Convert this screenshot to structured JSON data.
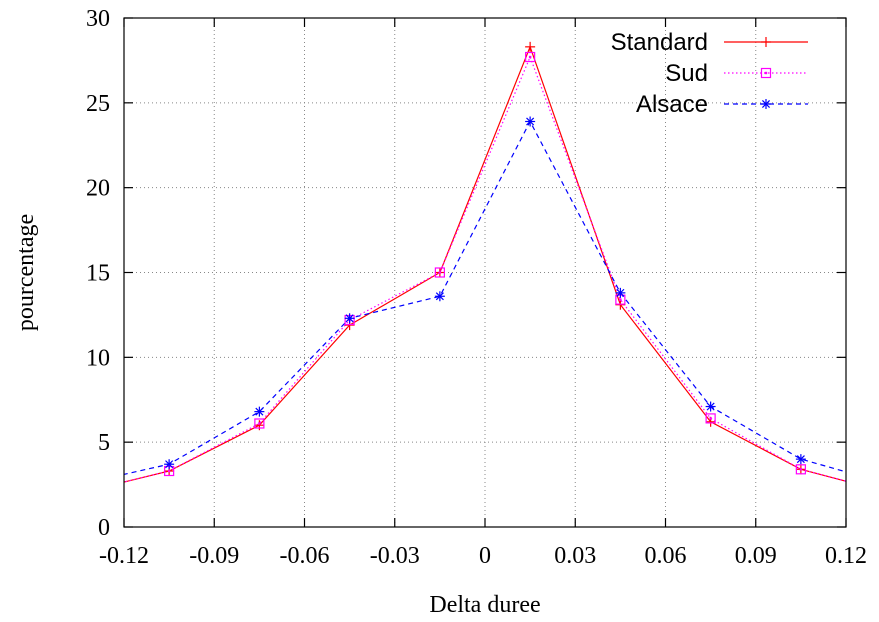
{
  "chart_data": {
    "type": "line",
    "xlabel": "Delta duree",
    "ylabel": "pourcentage",
    "xlim": [
      -0.12,
      0.12
    ],
    "ylim": [
      0,
      30
    ],
    "xticks": [
      -0.12,
      -0.09,
      -0.06,
      -0.03,
      0,
      0.03,
      0.06,
      0.09,
      0.12
    ],
    "xtick_labels": [
      "-0.12",
      "-0.09",
      "-0.06",
      "-0.03",
      "0",
      "0.03",
      "0.06",
      "0.09",
      "0.12"
    ],
    "yticks": [
      0,
      5,
      10,
      15,
      20,
      25,
      30
    ],
    "ytick_labels": [
      "0",
      "5",
      "10",
      "15",
      "20",
      "25",
      "30"
    ],
    "grid": true,
    "legend_position": "top-right",
    "x": [
      -0.135,
      -0.105,
      -0.075,
      -0.045,
      -0.015,
      0.015,
      0.045,
      0.075,
      0.105,
      0.135
    ],
    "series": [
      {
        "name": "Standard",
        "color": "#ff0000",
        "marker": "plus",
        "dash": "solid",
        "values": [
          2.0,
          3.3,
          6.0,
          11.9,
          15.0,
          28.3,
          13.1,
          6.2,
          3.4,
          2.0
        ]
      },
      {
        "name": "Sud",
        "color": "#ff00ff",
        "marker": "square",
        "dash": "dotted",
        "values": [
          2.0,
          3.3,
          6.1,
          12.2,
          15.0,
          27.7,
          13.4,
          6.4,
          3.4,
          2.0
        ]
      },
      {
        "name": "Alsace",
        "color": "#0000ff",
        "marker": "asterisk",
        "dash": "dashed",
        "values": [
          2.5,
          3.7,
          6.8,
          12.3,
          13.6,
          23.9,
          13.8,
          7.1,
          4.0,
          2.5
        ]
      }
    ]
  }
}
